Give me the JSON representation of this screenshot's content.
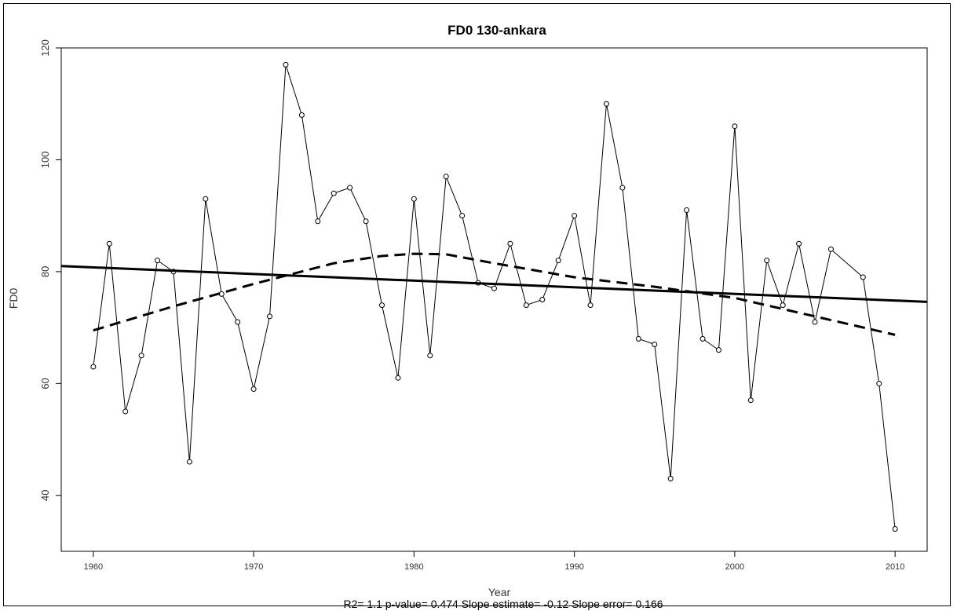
{
  "chart_data": {
    "type": "line",
    "title": "FD0   130-ankara",
    "xlabel": "Year",
    "ylabel": "FD0",
    "footer": "R2= 1.1  p-value= 0.474  Slope estimate= -0.12  Slope error= 0.166",
    "xlim": [
      1958,
      2012
    ],
    "ylim": [
      30,
      120
    ],
    "x_ticks": [
      1960,
      1970,
      1980,
      1990,
      2000,
      2010
    ],
    "y_ticks": [
      40,
      60,
      80,
      100,
      120
    ],
    "grid": false,
    "series": [
      {
        "style": "line-with-circle-markers",
        "x": [
          1960,
          1961,
          1962,
          1963,
          1964,
          1965,
          1966,
          1967,
          1968,
          1969,
          1970,
          1971,
          1972,
          1973,
          1974,
          1975,
          1976,
          1977,
          1978,
          1979,
          1980,
          1981,
          1982,
          1983,
          1984,
          1985,
          1986,
          1987,
          1988,
          1989,
          1990,
          1991,
          1992,
          1993,
          1994,
          1995,
          1996,
          1997,
          1998,
          1999,
          2000,
          2001,
          2002,
          2003,
          2004,
          2005,
          2006,
          2008,
          2009,
          2010
        ],
        "values": [
          63,
          85,
          55,
          65,
          82,
          80,
          46,
          93,
          76,
          71,
          59,
          72,
          117,
          108,
          89,
          94,
          95,
          89,
          74,
          61,
          93,
          65,
          97,
          90,
          78,
          77,
          85,
          74,
          75,
          82,
          90,
          74,
          110,
          95,
          68,
          67,
          43,
          91,
          68,
          66,
          106,
          57,
          82,
          74,
          85,
          71,
          84,
          79,
          60,
          34
        ]
      },
      {
        "style": "solid-thick-trend",
        "x": [
          1958,
          2012
        ],
        "values": [
          81.0,
          74.6
        ]
      },
      {
        "style": "dashed-thick-smooth",
        "x": [
          1960,
          1965,
          1970,
          1975,
          1978,
          1980,
          1982,
          1985,
          1990,
          1995,
          2000,
          2005,
          2010
        ],
        "values": [
          69.5,
          73.8,
          77.8,
          81.5,
          82.8,
          83.2,
          83.1,
          81.5,
          79.0,
          77.3,
          75.3,
          72.0,
          68.7
        ]
      }
    ]
  }
}
